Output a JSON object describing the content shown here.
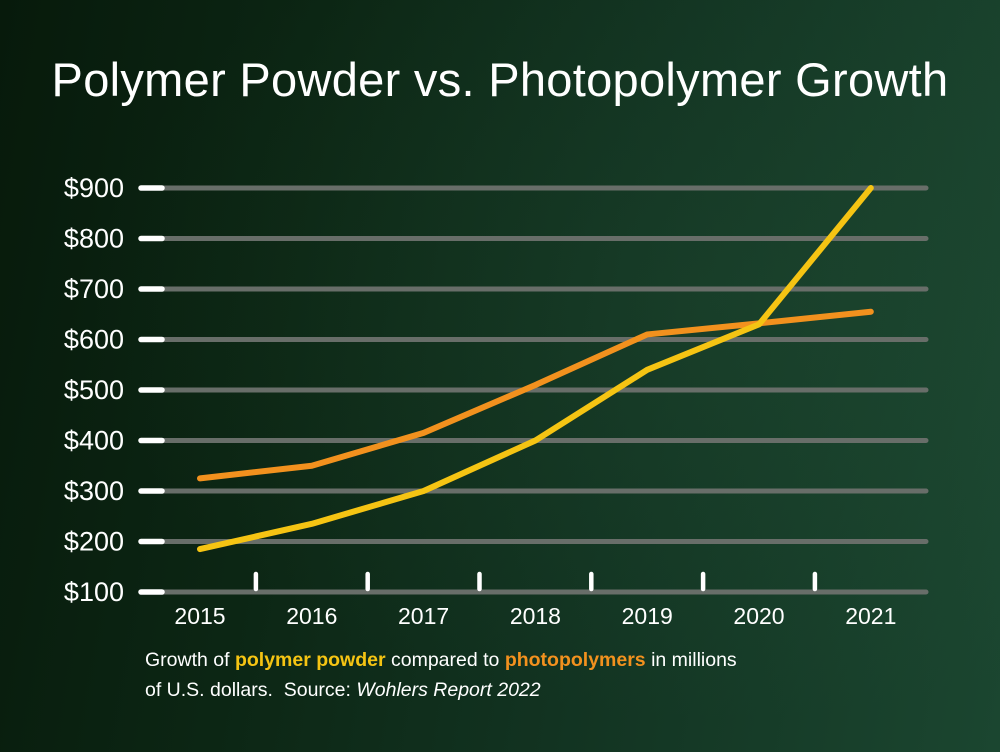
{
  "title": "Polymer Powder vs. Photopolymer Growth",
  "caption": {
    "prefix": "Growth of ",
    "series1": "polymer powder",
    "middle": " compared to ",
    "series2": "photopolymers",
    "line1_tail": " in millions",
    "line2_lead": "of U.S. dollars.  Source: ",
    "source": "Wohlers Report 2022"
  },
  "colors": {
    "background_left": "#071a0b",
    "background_right": "#1b4630",
    "title_text": "#ffffff",
    "gridline": "#686e69",
    "tick": "#ffffff",
    "axis_text": "#ffffff",
    "polymer_powder_yellow": "#F5C413",
    "photopolymers_orange": "#F2911E"
  },
  "chart_data": {
    "type": "line",
    "title": "Polymer Powder vs. Photopolymer Growth",
    "x": [
      "2015",
      "2016",
      "2017",
      "2018",
      "2019",
      "2020",
      "2021"
    ],
    "y_tick_labels": [
      "$100",
      "$200",
      "$300",
      "$400",
      "$500",
      "$600",
      "$700",
      "$800",
      "$900"
    ],
    "ylim": [
      100,
      900
    ],
    "grid": true,
    "units": "millions of U.S. dollars",
    "source": "Wohlers Report 2022",
    "series": [
      {
        "name": "photopolymers",
        "color": "#F2911E",
        "values": [
          325,
          350,
          415,
          510,
          610,
          632,
          655
        ]
      },
      {
        "name": "polymer powder",
        "color": "#F5C413",
        "values": [
          185,
          235,
          300,
          400,
          540,
          630,
          900
        ]
      }
    ]
  }
}
